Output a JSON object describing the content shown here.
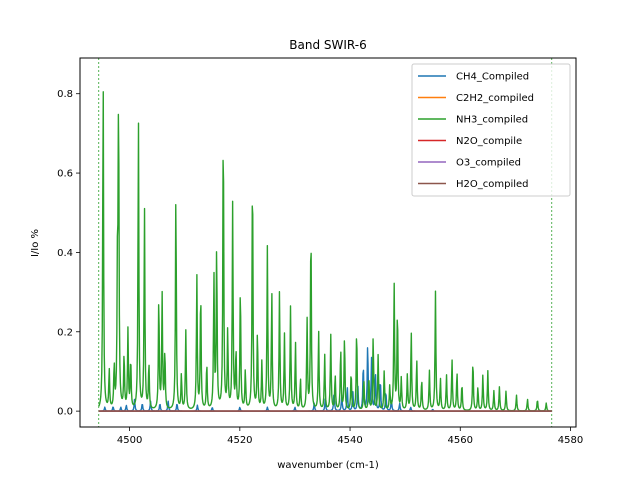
{
  "chart_data": {
    "type": "line",
    "title": "Band SWIR-6",
    "xlabel": "wavenumber (cm-1)",
    "ylabel": "I/Io %",
    "xlim": [
      4491,
      4581
    ],
    "ylim": [
      -0.04,
      0.89
    ],
    "xticks": [
      4500,
      4520,
      4540,
      4560,
      4580
    ],
    "yticks": [
      0.0,
      0.2,
      0.4,
      0.6,
      0.8
    ],
    "band_edges": [
      4494.4,
      4576.6
    ],
    "legend_position": "top-right",
    "grid": false,
    "series": [
      {
        "name": "CH4_Compiled",
        "color": "#1f77b4",
        "peaks": [
          [
            4495.5,
            0.01
          ],
          [
            4497.0,
            0.012
          ],
          [
            4498.4,
            0.01
          ],
          [
            4499.4,
            0.015
          ],
          [
            4500.9,
            0.03
          ],
          [
            4502.3,
            0.02
          ],
          [
            4503.8,
            0.025
          ],
          [
            4505.5,
            0.02
          ],
          [
            4507.0,
            0.025
          ],
          [
            4508.6,
            0.02
          ],
          [
            4512.3,
            0.015
          ],
          [
            4515.0,
            0.01
          ],
          [
            4520.0,
            0.01
          ],
          [
            4525.0,
            0.01
          ],
          [
            4530.0,
            0.01
          ],
          [
            4533.5,
            0.02
          ],
          [
            4535.5,
            0.03
          ],
          [
            4537.1,
            0.05
          ],
          [
            4538.5,
            0.04
          ],
          [
            4539.5,
            0.06
          ],
          [
            4540.5,
            0.05
          ],
          [
            4541.4,
            0.07
          ],
          [
            4542.4,
            0.12
          ],
          [
            4543.2,
            0.17
          ],
          [
            4543.9,
            0.13
          ],
          [
            4544.6,
            0.1
          ],
          [
            4545.5,
            0.08
          ],
          [
            4546.5,
            0.05
          ],
          [
            4547.5,
            0.03
          ],
          [
            4549.0,
            0.02
          ],
          [
            4551.0,
            0.01
          ],
          [
            4555.0,
            0.005
          ]
        ]
      },
      {
        "name": "C2H2_compiled",
        "color": "#ff7f0e",
        "peaks": []
      },
      {
        "name": "NH3_compiled",
        "color": "#2ca02c",
        "peaks": [
          [
            4495.2,
            0.85
          ],
          [
            4496.3,
            0.1
          ],
          [
            4497.2,
            0.11
          ],
          [
            4497.8,
            0.34
          ],
          [
            4498.0,
            0.78
          ],
          [
            4499.0,
            0.14
          ],
          [
            4499.7,
            0.2
          ],
          [
            4500.2,
            0.13
          ],
          [
            4501.6,
            0.74
          ],
          [
            4502.7,
            0.51
          ],
          [
            4503.5,
            0.12
          ],
          [
            4505.3,
            0.29
          ],
          [
            4505.9,
            0.29
          ],
          [
            4506.4,
            0.15
          ],
          [
            4508.4,
            0.56
          ],
          [
            4509.4,
            0.09
          ],
          [
            4510.2,
            0.2
          ],
          [
            4512.2,
            0.34
          ],
          [
            4512.9,
            0.31
          ],
          [
            4514.0,
            0.12
          ],
          [
            4515.3,
            0.34
          ],
          [
            4515.8,
            0.42
          ],
          [
            4517.0,
            0.75
          ],
          [
            4517.8,
            0.2
          ],
          [
            4518.7,
            0.52
          ],
          [
            4519.3,
            0.15
          ],
          [
            4520.1,
            0.32
          ],
          [
            4521.0,
            0.1
          ],
          [
            4522.3,
            0.63
          ],
          [
            4523.2,
            0.2
          ],
          [
            4524.0,
            0.12
          ],
          [
            4525.0,
            0.41
          ],
          [
            4525.8,
            0.3
          ],
          [
            4527.2,
            0.3
          ],
          [
            4528.1,
            0.19
          ],
          [
            4529.2,
            0.26
          ],
          [
            4530.1,
            0.17
          ],
          [
            4531.0,
            0.08
          ],
          [
            4532.2,
            0.23
          ],
          [
            4532.9,
            0.48
          ],
          [
            4534.3,
            0.2
          ],
          [
            4535.4,
            0.14
          ],
          [
            4536.5,
            0.19
          ],
          [
            4537.3,
            0.09
          ],
          [
            4538.3,
            0.16
          ],
          [
            4539.0,
            0.19
          ],
          [
            4540.2,
            0.1
          ],
          [
            4541.2,
            0.21
          ],
          [
            4542.5,
            0.08
          ],
          [
            4543.4,
            0.09
          ],
          [
            4544.2,
            0.19
          ],
          [
            4545.1,
            0.14
          ],
          [
            4546.2,
            0.1
          ],
          [
            4547.2,
            0.06
          ],
          [
            4548.0,
            0.32
          ],
          [
            4548.6,
            0.26
          ],
          [
            4549.3,
            0.08
          ],
          [
            4550.4,
            0.09
          ],
          [
            4551.1,
            0.2
          ],
          [
            4552.1,
            0.13
          ],
          [
            4553.0,
            0.08
          ],
          [
            4554.4,
            0.1
          ],
          [
            4555.5,
            0.3
          ],
          [
            4556.4,
            0.08
          ],
          [
            4557.5,
            0.09
          ],
          [
            4558.5,
            0.13
          ],
          [
            4559.4,
            0.1
          ],
          [
            4560.3,
            0.07
          ],
          [
            4562.3,
            0.13
          ],
          [
            4563.2,
            0.06
          ],
          [
            4564.1,
            0.09
          ],
          [
            4565.0,
            0.1
          ],
          [
            4566.1,
            0.05
          ],
          [
            4567.1,
            0.06
          ],
          [
            4568.3,
            0.05
          ],
          [
            4570.2,
            0.04
          ],
          [
            4572.2,
            0.03
          ],
          [
            4574.0,
            0.03
          ],
          [
            4575.6,
            0.02
          ]
        ]
      },
      {
        "name": "N2O_compile",
        "color": "#d62728",
        "peaks": []
      },
      {
        "name": "O3_compiled",
        "color": "#9467bd",
        "peaks": []
      },
      {
        "name": "H2O_compiled",
        "color": "#8c564b",
        "peaks": []
      }
    ]
  }
}
